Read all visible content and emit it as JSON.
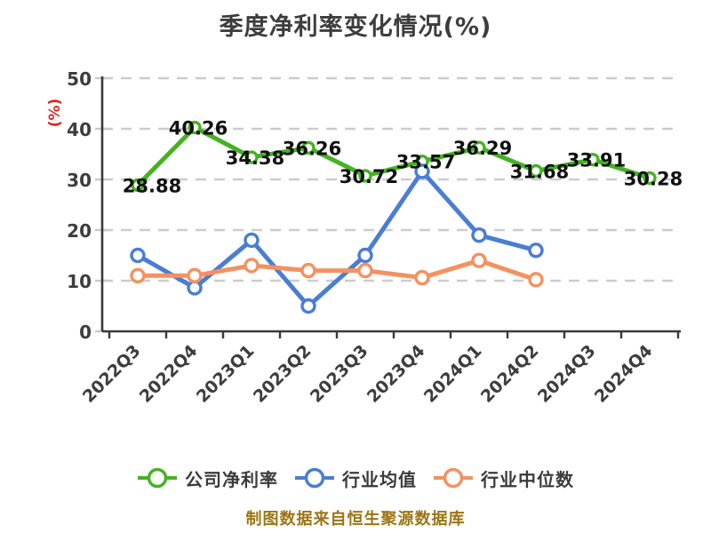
{
  "title": "季度净利率变化情况(%)",
  "footer": "制图数据来自恒生聚源数据库",
  "colors": {
    "title_text": "#3d3d3d",
    "axis_line": "#3a3a3a",
    "grid_line": "#cccccc",
    "tick_label": "#3d3d3d",
    "data_label": "#111111",
    "y_unit_label": "#e42320",
    "footer_text": "#9c7514",
    "background": "#ffffff"
  },
  "chart_data": {
    "type": "line",
    "title": "季度净利率变化情况(%)",
    "xlabel": "",
    "ylabel": "(%)",
    "ylim": [
      0,
      50
    ],
    "yticks": [
      0,
      10,
      20,
      30,
      40,
      50
    ],
    "grid": "horizontal dashed",
    "legend_position": "bottom",
    "categories": [
      "2022Q3",
      "2022Q4",
      "2023Q1",
      "2023Q2",
      "2023Q3",
      "2023Q4",
      "2024Q1",
      "2024Q2",
      "2024Q3",
      "2024Q4"
    ],
    "series": [
      {
        "name": "公司净利率",
        "color": "#44b321",
        "marker": "circle-white-fill",
        "labeled": true,
        "values": [
          28.88,
          40.26,
          34.38,
          36.26,
          30.72,
          33.57,
          36.29,
          31.68,
          33.91,
          30.28
        ]
      },
      {
        "name": "行业均值",
        "color": "#4a7dd3",
        "marker": "circle-white-fill",
        "labeled": false,
        "values": [
          15,
          8.6,
          18,
          5,
          15,
          31.6,
          19,
          16,
          null,
          null
        ]
      },
      {
        "name": "行业中位数",
        "color": "#f4915f",
        "marker": "circle-white-fill",
        "labeled": false,
        "values": [
          11,
          11,
          13,
          12,
          12,
          10.6,
          14,
          10.2,
          null,
          null
        ]
      }
    ]
  }
}
